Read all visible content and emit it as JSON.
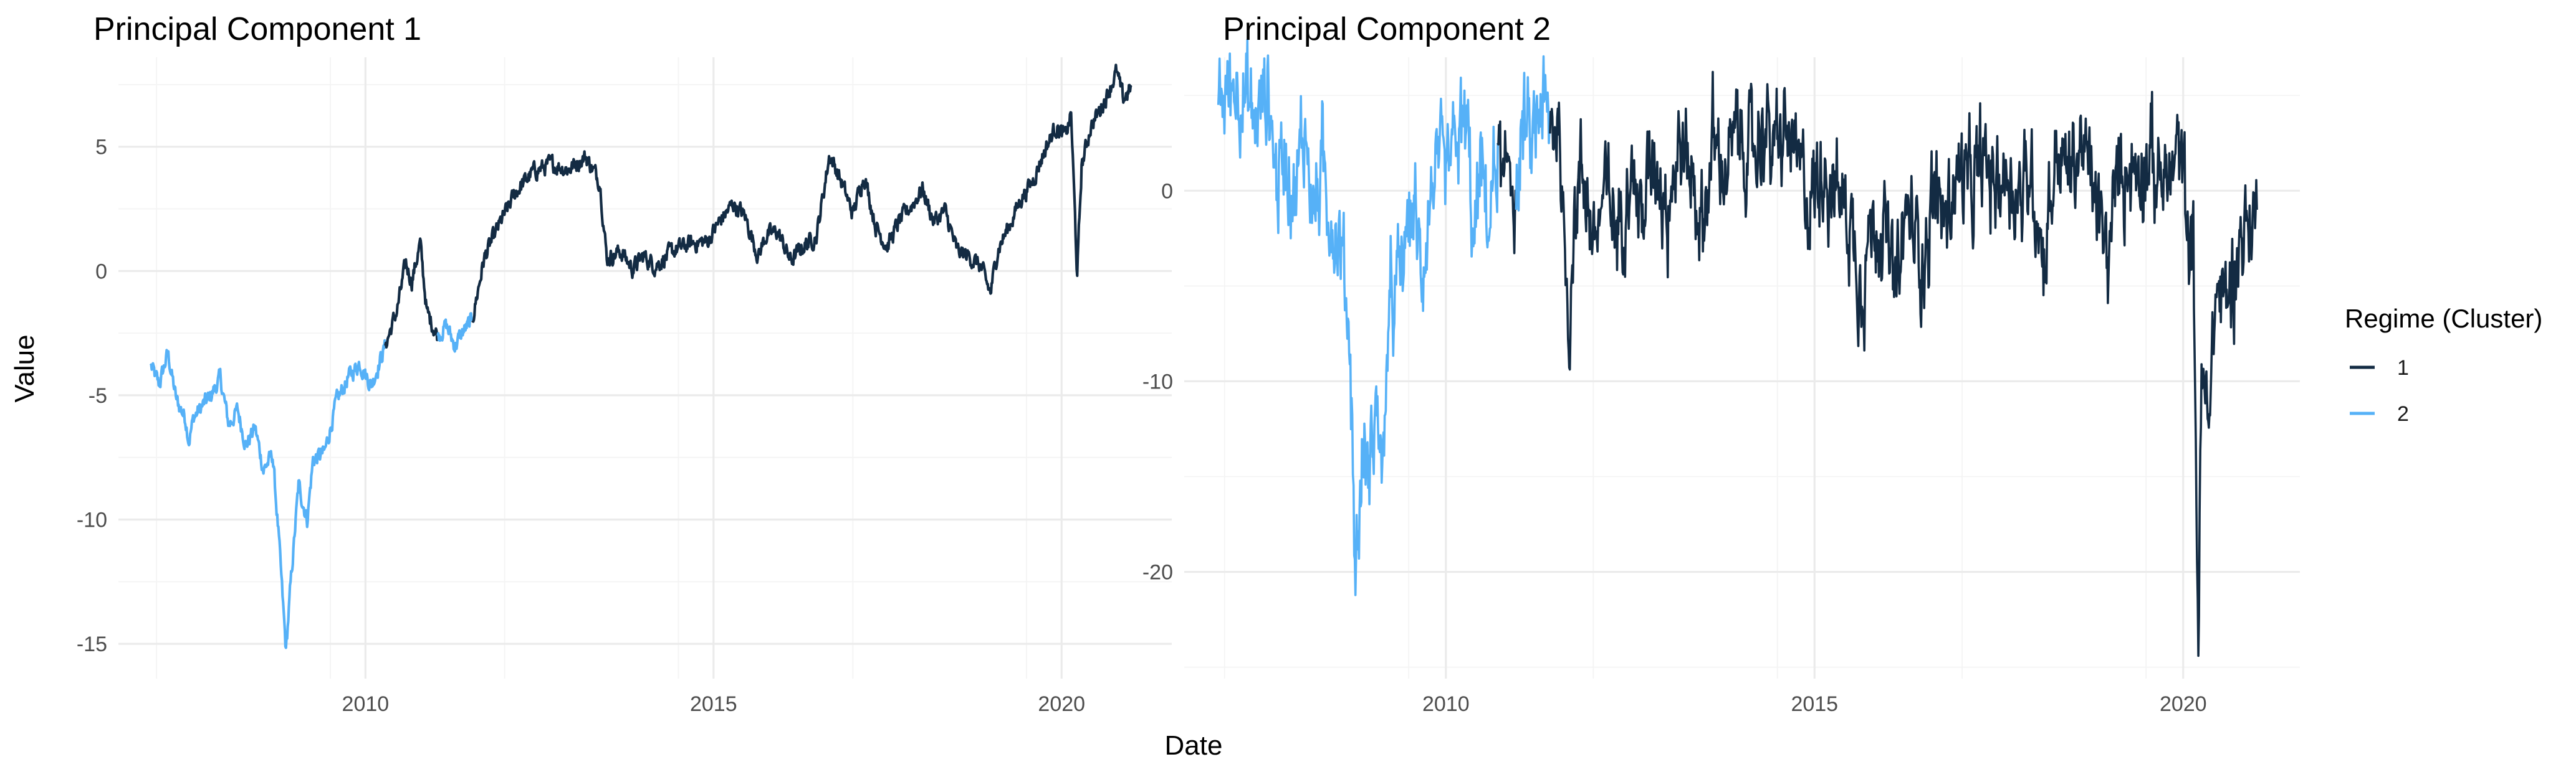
{
  "figure": {
    "xlabel": "Date",
    "ylabel": "Value",
    "legend": {
      "title": "Regime (Cluster)",
      "placement": "right",
      "items": [
        {
          "label": "1",
          "color": "#132B43"
        },
        {
          "label": "2",
          "color": "#56B1F7"
        }
      ]
    }
  },
  "chart_data": [
    {
      "type": "line",
      "title": "Principal Component 1",
      "x_is_date": true,
      "xlim": [
        "2006-06-15",
        "2021-08-01"
      ],
      "ylim": [
        -16.4,
        8.6
      ],
      "xticks": [
        {
          "value": "2010-01-01",
          "label": "2010"
        },
        {
          "value": "2015-01-01",
          "label": "2015"
        },
        {
          "value": "2020-01-01",
          "label": "2020"
        }
      ],
      "yticks": [
        {
          "value": -15,
          "label": "-15"
        },
        {
          "value": -10,
          "label": "-10"
        },
        {
          "value": -5,
          "label": "-5"
        },
        {
          "value": 0,
          "label": "0"
        },
        {
          "value": 5,
          "label": "5"
        }
      ],
      "grid": true,
      "color_by": "regime",
      "series": [
        {
          "regime": "2",
          "x": [
            "2006-12-01",
            "2007-01-15",
            "2007-03-01",
            "2007-04-15",
            "2007-06-01",
            "2007-06-20",
            "2007-07-15",
            "2007-09-01",
            "2007-10-15",
            "2007-12-01",
            "2008-01-15",
            "2008-03-01",
            "2008-04-15",
            "2008-06-01",
            "2008-07-15",
            "2008-09-01",
            "2008-10-01",
            "2008-10-20",
            "2008-11-10",
            "2008-12-01",
            "2009-01-15",
            "2009-03-01",
            "2009-04-01",
            "2009-06-01",
            "2009-08-01",
            "2009-10-01",
            "2009-12-01",
            "2010-02-01",
            "2010-04-15"
          ],
          "y": [
            -3.8,
            -4.6,
            -3.3,
            -5.2,
            -5.9,
            -6.8,
            -5.9,
            -5.4,
            -5.0,
            -4.3,
            -6.2,
            -5.6,
            -7.0,
            -6.3,
            -8.0,
            -7.4,
            -10.5,
            -12.8,
            -15.3,
            -13.0,
            -8.6,
            -10.0,
            -7.6,
            -7.3,
            -5.3,
            -4.3,
            -3.7,
            -4.6,
            -3.0
          ]
        },
        {
          "regime": "1",
          "x": [
            "2010-04-15",
            "2010-06-15",
            "2010-08-01",
            "2010-09-01",
            "2010-10-15",
            "2010-11-20",
            "2010-12-15",
            "2011-01-15"
          ],
          "y": [
            -3.0,
            -1.6,
            0.3,
            -0.4,
            1.1,
            -1.7,
            -2.1,
            -2.6
          ]
        },
        {
          "regime": "2",
          "x": [
            "2011-01-15",
            "2011-03-01",
            "2011-04-15",
            "2011-06-01",
            "2011-07-15"
          ],
          "y": [
            -2.6,
            -2.2,
            -3.0,
            -2.4,
            -2.0
          ]
        },
        {
          "regime": "1",
          "x": [
            "2011-07-15",
            "2011-09-15",
            "2011-12-01",
            "2012-03-01",
            "2012-06-01",
            "2012-09-01",
            "2012-12-01",
            "2013-03-01",
            "2013-05-15",
            "2013-06-20",
            "2013-09-01",
            "2013-11-01",
            "2014-01-01",
            "2014-03-01",
            "2014-06-01",
            "2014-09-01",
            "2014-12-01",
            "2015-02-01",
            "2015-04-15",
            "2015-06-15",
            "2015-08-24",
            "2015-10-01",
            "2015-12-01",
            "2016-02-11",
            "2016-04-15",
            "2016-06-24",
            "2016-09-01",
            "2016-11-01",
            "2017-01-01",
            "2017-03-01",
            "2017-05-01",
            "2017-07-01",
            "2017-09-01",
            "2017-11-01",
            "2018-01-01",
            "2018-03-01",
            "2018-05-01",
            "2018-07-01",
            "2018-09-01",
            "2018-11-01",
            "2018-12-24",
            "2019-02-01",
            "2019-04-01",
            "2019-06-01",
            "2019-08-01",
            "2019-10-01",
            "2019-12-01",
            "2020-01-20",
            "2020-02-20",
            "2020-03-23",
            "2020-04-15",
            "2020-06-01",
            "2020-07-15",
            "2020-09-01",
            "2020-10-15",
            "2020-11-20",
            "2020-12-31"
          ],
          "y": [
            -2.0,
            0.5,
            1.8,
            3.2,
            4.0,
            4.3,
            4.1,
            4.6,
            3.6,
            0.5,
            0.8,
            0.1,
            0.6,
            0.2,
            0.8,
            1.1,
            1.2,
            2.0,
            2.7,
            2.2,
            0.6,
            1.4,
            1.6,
            0.4,
            1.0,
            1.4,
            4.7,
            3.6,
            2.3,
            3.9,
            1.8,
            1.0,
            2.0,
            2.6,
            3.3,
            2.0,
            2.4,
            0.8,
            0.6,
            0.2,
            -0.9,
            0.9,
            1.8,
            2.9,
            3.6,
            4.8,
            5.8,
            5.4,
            6.3,
            -0.2,
            4.2,
            5.8,
            6.4,
            7.2,
            8.0,
            6.9,
            7.4
          ]
        }
      ]
    },
    {
      "type": "line",
      "title": "Principal Component 2",
      "x_is_date": true,
      "xlim": [
        "2006-06-15",
        "2021-08-01"
      ],
      "ylim": [
        -25.6,
        7.0
      ],
      "xticks": [
        {
          "value": "2010-01-01",
          "label": "2010"
        },
        {
          "value": "2015-01-01",
          "label": "2015"
        },
        {
          "value": "2020-01-01",
          "label": "2020"
        }
      ],
      "yticks": [
        {
          "value": -20,
          "label": "-20"
        },
        {
          "value": -10,
          "label": "-10"
        },
        {
          "value": 0,
          "label": "0"
        }
      ],
      "grid": true,
      "color_by": "regime",
      "series": [
        {
          "regime": "2",
          "x": [
            "2006-12-01",
            "2007-01-15",
            "2007-03-01",
            "2007-04-15",
            "2007-06-01",
            "2007-08-01",
            "2007-09-15",
            "2007-11-01",
            "2007-12-15",
            "2008-02-01",
            "2008-03-15",
            "2008-05-01",
            "2008-06-15",
            "2008-08-01",
            "2008-09-15",
            "2008-10-10",
            "2008-11-20",
            "2008-12-15",
            "2009-01-15",
            "2009-03-01",
            "2009-03-15",
            "2009-04-15",
            "2009-06-01",
            "2009-07-15",
            "2009-09-01",
            "2009-11-01",
            "2010-01-01",
            "2010-03-01",
            "2010-04-15",
            "2010-05-20",
            "2010-06-20",
            "2010-08-01",
            "2010-09-15"
          ],
          "y": [
            4.5,
            5.2,
            5.8,
            4.8,
            3.5,
            5.5,
            0.5,
            2.5,
            -0.5,
            3.5,
            -1.0,
            1.0,
            -1.5,
            -3.0,
            -8.0,
            -20.5,
            -13.0,
            -15.0,
            -11.0,
            -15.0,
            -8.0,
            -6.0,
            -4.0,
            -0.5,
            -4.0,
            1.0,
            0.5,
            2.8,
            3.4,
            -3.5,
            1.5,
            -2.0,
            2.5
          ]
        },
        {
          "regime": "1",
          "x": [
            "2010-09-15",
            "2010-10-15",
            "2010-11-15",
            "2010-12-15"
          ],
          "y": [
            2.5,
            -0.5,
            2.0,
            -1.0
          ]
        },
        {
          "regime": "2",
          "x": [
            "2010-12-15",
            "2011-01-15",
            "2011-03-01",
            "2011-04-15",
            "2011-06-01"
          ],
          "y": [
            -1.0,
            3.5,
            2.0,
            5.0,
            3.0
          ]
        },
        {
          "regime": "1",
          "x": [
            "2011-06-01",
            "2011-07-15",
            "2011-08-08",
            "2011-09-01",
            "2011-10-01",
            "2011-11-15",
            "2012-01-01",
            "2012-03-01",
            "2012-05-01",
            "2012-07-01",
            "2012-09-01",
            "2012-11-01",
            "2013-01-01",
            "2013-03-01",
            "2013-05-01",
            "2013-06-24",
            "2013-08-15",
            "2013-10-15",
            "2013-12-15",
            "2014-02-15",
            "2014-04-15",
            "2014-06-15",
            "2014-08-15",
            "2014-10-15",
            "2014-12-15",
            "2015-02-15",
            "2015-04-15",
            "2015-06-15",
            "2015-08-24",
            "2015-10-01",
            "2015-12-01",
            "2016-02-11",
            "2016-04-01",
            "2016-06-24",
            "2016-08-15",
            "2016-10-15",
            "2016-12-15",
            "2017-02-15",
            "2017-04-15",
            "2017-06-15",
            "2017-08-15",
            "2017-10-15",
            "2017-12-15",
            "2018-02-08",
            "2018-04-15",
            "2018-06-15",
            "2018-08-15",
            "2018-10-15",
            "2018-12-24",
            "2019-02-15",
            "2019-04-15",
            "2019-06-15",
            "2019-08-15",
            "2019-10-15",
            "2019-12-15",
            "2020-01-20",
            "2020-02-20",
            "2020-03-16",
            "2020-04-01",
            "2020-05-01",
            "2020-06-15",
            "2020-08-01",
            "2020-09-15",
            "2020-11-01",
            "2020-12-31"
          ],
          "y": [
            3.0,
            4.0,
            -2.5,
            -7.0,
            -1.0,
            1.5,
            -3.0,
            0.0,
            -2.0,
            1.5,
            -1.5,
            2.0,
            -0.5,
            2.5,
            1.0,
            -2.0,
            2.5,
            1.0,
            3.0,
            1.5,
            3.5,
            2.0,
            3.0,
            1.0,
            -0.5,
            1.5,
            0.0,
            -1.0,
            -5.0,
            -2.0,
            -1.5,
            -5.5,
            -1.0,
            -3.5,
            0.0,
            -1.5,
            1.0,
            0.0,
            1.5,
            0.5,
            1.0,
            -0.5,
            1.0,
            -3.5,
            2.0,
            1.0,
            2.5,
            0.0,
            -4.0,
            1.5,
            1.0,
            2.0,
            1.0,
            0.5,
            2.0,
            -1.5,
            -3.0,
            -23.5,
            -10.0,
            -12.0,
            -5.0,
            -6.0,
            -3.5,
            -2.0,
            -1.0
          ]
        }
      ]
    }
  ]
}
